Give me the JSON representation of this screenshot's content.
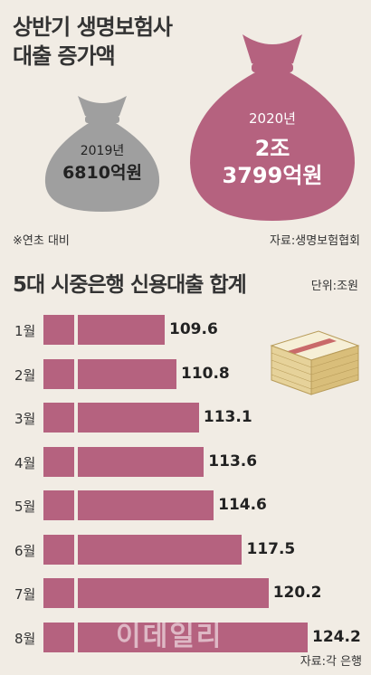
{
  "top": {
    "title_line1": "상반기 생명보험사",
    "title_line2": "대출 증가액",
    "bag_small": {
      "year": "2019년",
      "amount": "6810억원"
    },
    "bag_large": {
      "year": "2020년",
      "amount_line1": "2조",
      "amount_line2": "3799억원"
    },
    "footnote": "※연초 대비",
    "source": "자료:생명보험협회"
  },
  "bottom": {
    "title": "5대 시중은행 신용대출 합계",
    "unit": "단위:조원",
    "source": "자료:각 은행",
    "watermark": "이데일리"
  },
  "colors": {
    "bar": "#b5627f",
    "bag_large": "#b5627f",
    "bag_small": "#9f9f9f",
    "background": "#f1ece4"
  },
  "chart_data": {
    "type": "bar",
    "orientation": "horizontal",
    "title": "5대 시중은행 신용대출 합계",
    "categories": [
      "1월",
      "2월",
      "3월",
      "4월",
      "5월",
      "6월",
      "7월",
      "8월"
    ],
    "values": [
      109.6,
      110.8,
      113.1,
      113.6,
      114.6,
      117.5,
      120.2,
      124.2
    ],
    "value_labels": [
      "109.6",
      "110.8",
      "113.1",
      "113.6",
      "114.6",
      "117.5",
      "120.2",
      "124.2"
    ],
    "axis_break": true
  }
}
